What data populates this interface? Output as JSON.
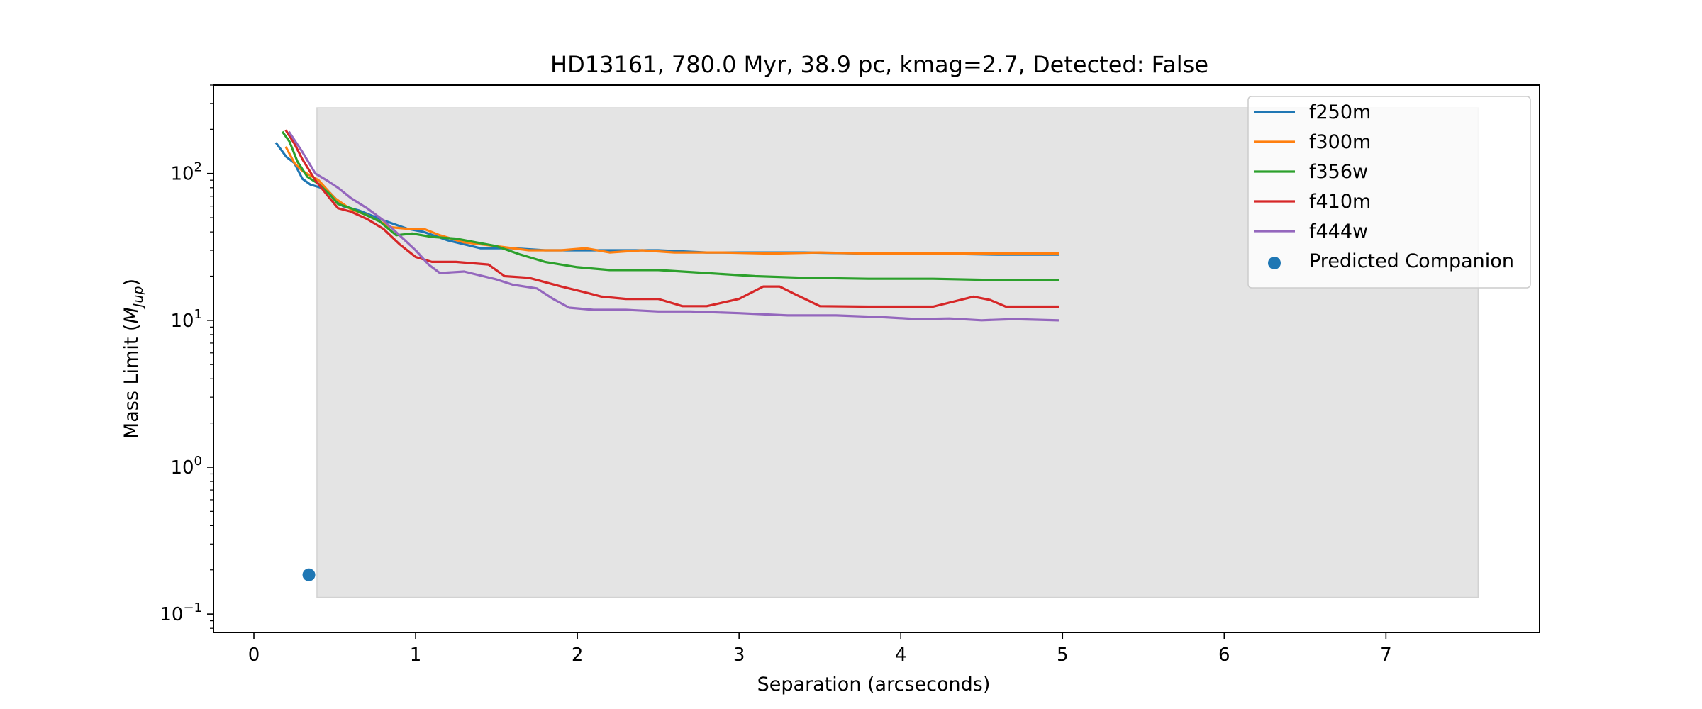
{
  "chart_data": {
    "type": "line",
    "title": "HD13161, 780.0 Myr, 38.9 pc, kmag=2.7, Detected: False",
    "xlabel": "Separation (arcseconds)",
    "ylabel_main": "Mass Limit (",
    "ylabel_math": "M",
    "ylabel_sub": "Jup",
    "ylabel_close": ")",
    "xlim": [
      -0.25,
      7.95
    ],
    "ylim": [
      0.075,
      400
    ],
    "yscale": "log",
    "xticks": [
      0,
      1,
      2,
      3,
      4,
      5,
      6,
      7
    ],
    "xtick_labels": [
      "0",
      "1",
      "2",
      "3",
      "4",
      "5",
      "6",
      "7"
    ],
    "yticks": [
      {
        "value": 0.1,
        "base": "10",
        "exp": "−1"
      },
      {
        "value": 1,
        "base": "10",
        "exp": "0"
      },
      {
        "value": 10,
        "base": "10",
        "exp": "1"
      },
      {
        "value": 100,
        "base": "10",
        "exp": "2"
      }
    ],
    "shaded_region": {
      "x": [
        0.39,
        7.57
      ],
      "y": [
        0.13,
        280
      ],
      "color": "#e4e4e4"
    },
    "legend_position": "upper right",
    "series": [
      {
        "name": "f250m",
        "color": "#1f77b4",
        "x": [
          0.14,
          0.2,
          0.25,
          0.3,
          0.35,
          0.45,
          0.55,
          0.65,
          0.8,
          0.95,
          1.05,
          1.2,
          1.4,
          1.6,
          1.8,
          2.0,
          2.2,
          2.5,
          2.8,
          3.1,
          3.4,
          3.8,
          4.2,
          4.6,
          4.97
        ],
        "y": [
          160,
          130,
          118,
          92,
          84,
          78,
          60,
          56,
          48,
          42,
          40,
          35,
          31,
          31,
          30,
          30,
          30,
          30,
          29,
          29,
          29,
          28.5,
          28.5,
          28,
          28
        ]
      },
      {
        "name": "f300m",
        "color": "#ff7f0e",
        "x": [
          0.2,
          0.25,
          0.3,
          0.4,
          0.5,
          0.6,
          0.7,
          0.85,
          0.95,
          1.05,
          1.15,
          1.3,
          1.5,
          1.7,
          1.9,
          2.05,
          2.2,
          2.4,
          2.6,
          2.9,
          3.2,
          3.5,
          3.8,
          4.1,
          4.4,
          4.7,
          4.97
        ],
        "y": [
          150,
          118,
          104,
          90,
          68,
          57,
          52,
          43,
          42,
          42,
          38,
          34,
          32,
          30,
          30,
          31,
          29,
          30,
          29,
          29,
          28.5,
          29,
          28.5,
          28.5,
          28.5,
          28.5,
          28.5
        ]
      },
      {
        "name": "f356w",
        "color": "#2ca02c",
        "x": [
          0.18,
          0.22,
          0.27,
          0.33,
          0.4,
          0.47,
          0.52,
          0.6,
          0.68,
          0.78,
          0.88,
          0.98,
          1.1,
          1.25,
          1.5,
          1.65,
          1.8,
          2.0,
          2.2,
          2.5,
          2.8,
          3.1,
          3.4,
          3.8,
          4.2,
          4.6,
          4.97
        ],
        "y": [
          190,
          165,
          120,
          95,
          85,
          72,
          62,
          58,
          53,
          47,
          38,
          39,
          37,
          36,
          32,
          28,
          25,
          23,
          22,
          22,
          21,
          20,
          19.5,
          19.2,
          19.2,
          18.8,
          18.8
        ]
      },
      {
        "name": "f410m",
        "color": "#d62728",
        "x": [
          0.2,
          0.25,
          0.3,
          0.38,
          0.45,
          0.52,
          0.6,
          0.7,
          0.8,
          0.9,
          1.0,
          1.1,
          1.25,
          1.45,
          1.55,
          1.7,
          1.9,
          2.05,
          2.15,
          2.3,
          2.5,
          2.65,
          2.8,
          3.0,
          3.15,
          3.25,
          3.35,
          3.5,
          3.8,
          4.2,
          4.45,
          4.55,
          4.65,
          4.8,
          4.97
        ],
        "y": [
          195,
          160,
          125,
          90,
          72,
          58,
          55,
          49,
          42,
          33,
          27,
          25,
          25,
          24,
          20,
          19.5,
          17,
          15.5,
          14.5,
          14,
          14,
          12.5,
          12.5,
          14,
          17,
          17,
          15,
          12.5,
          12.4,
          12.4,
          14.5,
          13.8,
          12.4,
          12.4,
          12.4
        ]
      },
      {
        "name": "f444w",
        "color": "#9467bd",
        "x": [
          0.22,
          0.3,
          0.38,
          0.45,
          0.52,
          0.6,
          0.7,
          0.8,
          0.9,
          1.0,
          1.08,
          1.15,
          1.3,
          1.5,
          1.6,
          1.75,
          1.85,
          1.95,
          2.1,
          2.3,
          2.5,
          2.7,
          3.0,
          3.3,
          3.6,
          3.9,
          4.1,
          4.3,
          4.5,
          4.7,
          4.97
        ],
        "y": [
          190,
          140,
          100,
          90,
          80,
          68,
          58,
          48,
          38,
          30,
          24,
          21,
          21.5,
          19,
          17.5,
          16.5,
          14,
          12.2,
          11.8,
          11.8,
          11.5,
          11.5,
          11.2,
          10.8,
          10.8,
          10.5,
          10.2,
          10.3,
          10,
          10.2,
          10
        ]
      }
    ],
    "scatter": {
      "name": "Predicted Companion",
      "color": "#1f77b4",
      "x": [
        0.34
      ],
      "y": [
        0.185
      ]
    }
  }
}
